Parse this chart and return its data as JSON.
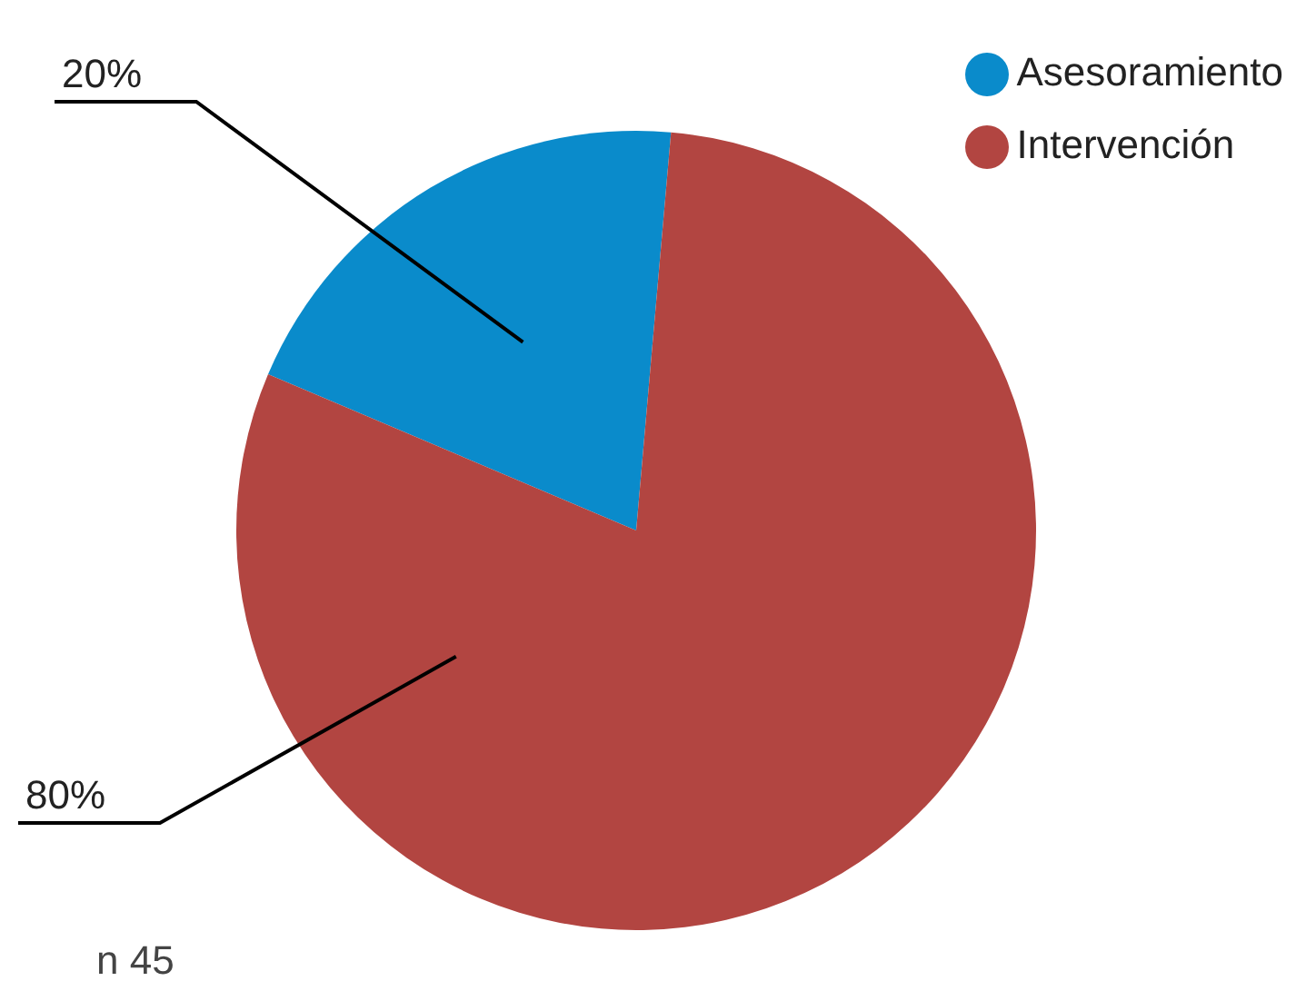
{
  "chart_data": {
    "type": "pie",
    "categories": [
      "Asesoramiento",
      "Intervención"
    ],
    "values": [
      20,
      80
    ],
    "colors": [
      "#0a8bcb",
      "#b24541"
    ],
    "value_labels": [
      "20%",
      "80%"
    ],
    "legend": "top right",
    "annotations": [
      "n 45"
    ]
  }
}
